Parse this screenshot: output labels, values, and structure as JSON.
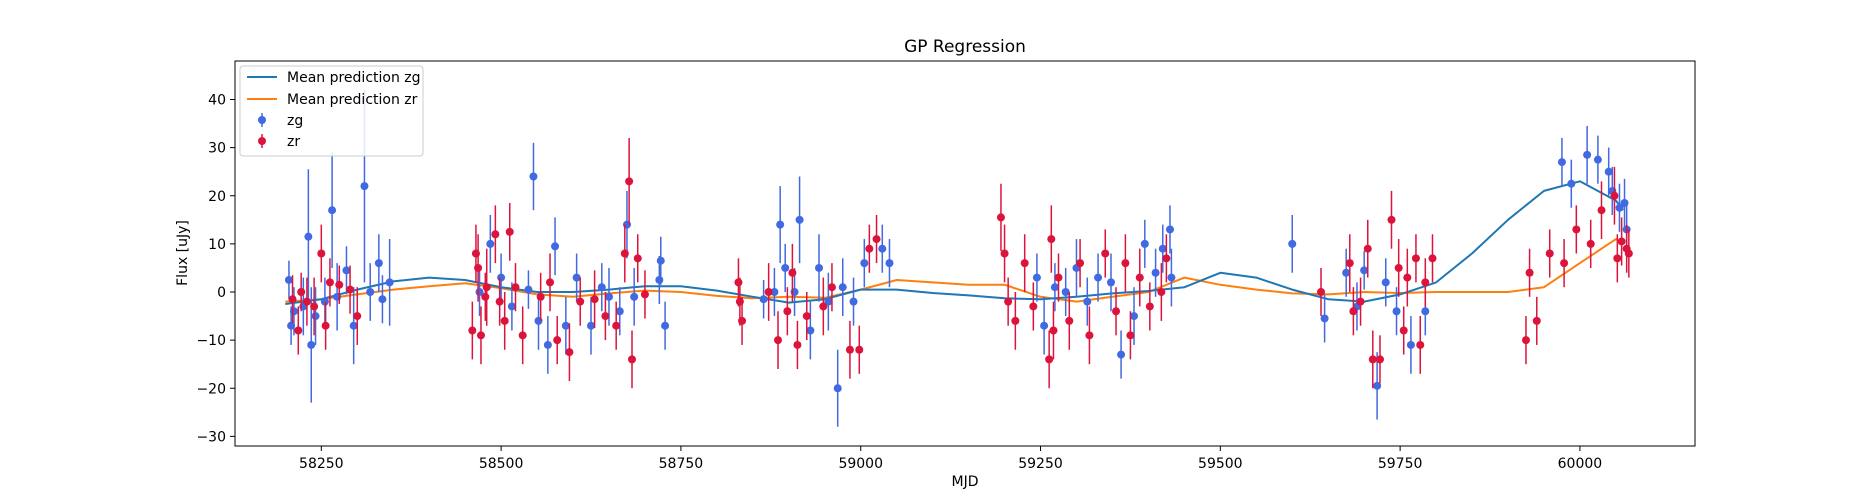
{
  "chart_data": {
    "type": "scatter",
    "title": "GP Regression",
    "xlabel": "MJD",
    "ylabel": "Flux [uJy]",
    "xlim": [
      58130,
      60160
    ],
    "ylim": [
      -32,
      48
    ],
    "xticks": [
      58250,
      58500,
      58750,
      59000,
      59250,
      59500,
      59750,
      60000
    ],
    "yticks": [
      -30,
      -20,
      -10,
      0,
      10,
      20,
      30,
      40
    ],
    "grid": false,
    "legend_position": "top-left",
    "series": [
      {
        "name": "Mean prediction zg",
        "kind": "line",
        "color": "#1f77b4",
        "x": [
          58200,
          58250,
          58300,
          58350,
          58400,
          58450,
          58500,
          58550,
          58600,
          58650,
          58700,
          58750,
          58800,
          58850,
          58900,
          58950,
          59000,
          59050,
          59100,
          59150,
          59200,
          59250,
          59300,
          59350,
          59400,
          59450,
          59500,
          59550,
          59600,
          59650,
          59700,
          59750,
          59800,
          59850,
          59900,
          59950,
          60000,
          60050,
          60060
        ],
        "y": [
          -2.5,
          -1.5,
          0.5,
          2.2,
          3.0,
          2.5,
          1.0,
          0.0,
          0.0,
          0.5,
          1.2,
          1.2,
          0.3,
          -1.0,
          -2.2,
          -1.5,
          0.5,
          0.5,
          -0.2,
          -0.7,
          -1.3,
          -1.5,
          -1.0,
          -0.3,
          0.2,
          1.0,
          4.0,
          3.0,
          0.5,
          -1.5,
          -2.0,
          -0.5,
          2.0,
          8.0,
          15.0,
          21.0,
          23.0,
          19.0,
          17.0
        ]
      },
      {
        "name": "Mean prediction zr",
        "kind": "line",
        "color": "#ff7f0e",
        "x": [
          58200,
          58250,
          58300,
          58350,
          58400,
          58450,
          58500,
          58550,
          58600,
          58650,
          58700,
          58750,
          58800,
          58850,
          58900,
          58950,
          59000,
          59050,
          59100,
          59150,
          59200,
          59250,
          59300,
          59350,
          59400,
          59450,
          59500,
          59550,
          59600,
          59650,
          59700,
          59750,
          59800,
          59850,
          59900,
          59950,
          60000,
          60050,
          60060
        ],
        "y": [
          -2.0,
          -1.5,
          -0.5,
          0.5,
          1.2,
          1.8,
          0.8,
          -0.5,
          -1.0,
          -0.3,
          0.3,
          0.0,
          -0.8,
          -1.3,
          -1.0,
          -1.2,
          0.5,
          2.5,
          2.0,
          1.5,
          1.5,
          -1.0,
          -2.0,
          -1.0,
          0.0,
          3.0,
          1.5,
          0.5,
          -0.3,
          -0.5,
          0.0,
          -0.2,
          0.0,
          0.0,
          0.0,
          1.0,
          6.0,
          11.0,
          10.0
        ]
      },
      {
        "name": "zg",
        "kind": "errorbar",
        "color": "#4169e1",
        "points": [
          [
            58205,
            2.5,
            4
          ],
          [
            58208,
            -7,
            4
          ],
          [
            58212,
            -4,
            5
          ],
          [
            58225,
            -3,
            6
          ],
          [
            58232,
            11.5,
            14
          ],
          [
            58236,
            -11,
            12
          ],
          [
            58242,
            -5,
            6
          ],
          [
            58255,
            -2,
            5
          ],
          [
            58265,
            17,
            12
          ],
          [
            58272,
            -1,
            7
          ],
          [
            58285,
            4.5,
            5
          ],
          [
            58295,
            -7,
            8
          ],
          [
            58310,
            22,
            20
          ],
          [
            58318,
            0,
            6
          ],
          [
            58330,
            6,
            6
          ],
          [
            58335,
            -1.5,
            5
          ],
          [
            58345,
            2,
            9
          ],
          [
            58470,
            0,
            5
          ],
          [
            58485,
            10,
            6
          ],
          [
            58500,
            3,
            5
          ],
          [
            58515,
            -3,
            5
          ],
          [
            58538,
            0.5,
            4
          ],
          [
            58545,
            24,
            7
          ],
          [
            58552,
            -6,
            6
          ],
          [
            58565,
            -11,
            6
          ],
          [
            58575,
            9.5,
            6
          ],
          [
            58590,
            -7,
            6
          ],
          [
            58605,
            3,
            5
          ],
          [
            58625,
            -7,
            6
          ],
          [
            58640,
            1,
            5
          ],
          [
            58650,
            -1,
            6
          ],
          [
            58665,
            -4,
            5
          ],
          [
            58675,
            14,
            7
          ],
          [
            58685,
            -1,
            6
          ],
          [
            58720,
            2.5,
            5
          ],
          [
            58722,
            6.5,
            5
          ],
          [
            58728,
            -7,
            5
          ],
          [
            58865,
            -1.5,
            4
          ],
          [
            58880,
            0,
            5
          ],
          [
            58888,
            14,
            8
          ],
          [
            58895,
            5,
            5
          ],
          [
            58908,
            0,
            5
          ],
          [
            58915,
            15,
            9
          ],
          [
            58930,
            -8,
            6
          ],
          [
            58942,
            5,
            7
          ],
          [
            58955,
            -2,
            6
          ],
          [
            58968,
            -20,
            8
          ],
          [
            58975,
            1,
            6
          ],
          [
            58990,
            -2,
            5
          ],
          [
            59005,
            6,
            5
          ],
          [
            59030,
            9,
            5
          ],
          [
            59040,
            6,
            5
          ],
          [
            59245,
            3,
            5
          ],
          [
            59255,
            -7,
            6
          ],
          [
            59270,
            1,
            5
          ],
          [
            59285,
            0,
            5
          ],
          [
            59300,
            5,
            6
          ],
          [
            59315,
            -2,
            5
          ],
          [
            59330,
            3,
            5
          ],
          [
            59348,
            2,
            6
          ],
          [
            59362,
            -13,
            5
          ],
          [
            59380,
            -5,
            6
          ],
          [
            59395,
            10,
            5
          ],
          [
            59410,
            4,
            5
          ],
          [
            59420,
            9,
            5
          ],
          [
            59430,
            13,
            5
          ],
          [
            59432,
            3,
            6
          ],
          [
            59600,
            10,
            6
          ],
          [
            59645,
            -5.5,
            5
          ],
          [
            59675,
            4,
            5
          ],
          [
            59690,
            -3,
            5
          ],
          [
            59700,
            4.5,
            4
          ],
          [
            59718,
            -19.5,
            7
          ],
          [
            59730,
            2,
            5
          ],
          [
            59745,
            -4,
            5
          ],
          [
            59765,
            -11,
            6
          ],
          [
            59785,
            -4,
            5
          ],
          [
            59975,
            27,
            5
          ],
          [
            59988,
            22.5,
            5
          ],
          [
            60010,
            28.5,
            6
          ],
          [
            60025,
            27.5,
            5
          ],
          [
            60040,
            25,
            5
          ],
          [
            60045,
            21,
            5
          ],
          [
            60055,
            17.5,
            5
          ],
          [
            60062,
            18.5,
            5
          ],
          [
            60065,
            13,
            5
          ]
        ]
      },
      {
        "name": "zr",
        "kind": "errorbar",
        "color": "#dc143c",
        "points": [
          [
            58210,
            -1.5,
            5
          ],
          [
            58218,
            -8,
            5
          ],
          [
            58222,
            0,
            4
          ],
          [
            58230,
            -2,
            5
          ],
          [
            58240,
            -3,
            6
          ],
          [
            58250,
            8,
            6
          ],
          [
            58256,
            -7,
            5
          ],
          [
            58262,
            2,
            5
          ],
          [
            58275,
            1.5,
            4
          ],
          [
            58290,
            0.5,
            5
          ],
          [
            58300,
            -5,
            6
          ],
          [
            58460,
            -8,
            6
          ],
          [
            58465,
            8,
            6
          ],
          [
            58468,
            5,
            7
          ],
          [
            58472,
            -9,
            6
          ],
          [
            58478,
            -1,
            5
          ],
          [
            58480,
            1,
            8
          ],
          [
            58492,
            12,
            6
          ],
          [
            58498,
            -2,
            5
          ],
          [
            58505,
            -6,
            6
          ],
          [
            58512,
            12.5,
            6
          ],
          [
            58520,
            1,
            5
          ],
          [
            58530,
            -9,
            6
          ],
          [
            58555,
            -1,
            5
          ],
          [
            58568,
            2,
            6
          ],
          [
            58578,
            -10,
            5
          ],
          [
            58595,
            -12.5,
            6
          ],
          [
            58610,
            -2,
            5
          ],
          [
            58630,
            -1.5,
            6
          ],
          [
            58645,
            -5,
            5
          ],
          [
            58660,
            -7,
            5
          ],
          [
            58672,
            8,
            6
          ],
          [
            58678,
            23,
            9
          ],
          [
            58682,
            -14,
            6
          ],
          [
            58690,
            7,
            5
          ],
          [
            58700,
            -0.5,
            5
          ],
          [
            58830,
            2,
            5
          ],
          [
            58832,
            -2,
            5
          ],
          [
            58835,
            -6,
            5
          ],
          [
            58872,
            0,
            6
          ],
          [
            58885,
            -10,
            6
          ],
          [
            58898,
            -4,
            5
          ],
          [
            58905,
            4,
            6
          ],
          [
            58912,
            -11,
            5
          ],
          [
            58925,
            -5,
            5
          ],
          [
            58948,
            -3,
            6
          ],
          [
            58960,
            1,
            5
          ],
          [
            58985,
            -12,
            6
          ],
          [
            58998,
            -12,
            5
          ],
          [
            59012,
            9,
            5
          ],
          [
            59022,
            11,
            5
          ],
          [
            59195,
            15.5,
            7
          ],
          [
            59200,
            8,
            6
          ],
          [
            59205,
            -2,
            5
          ],
          [
            59215,
            -6,
            6
          ],
          [
            59228,
            6,
            6
          ],
          [
            59240,
            -3,
            5
          ],
          [
            59262,
            -14,
            6
          ],
          [
            59265,
            11,
            7
          ],
          [
            59268,
            -8,
            6
          ],
          [
            59275,
            3,
            5
          ],
          [
            59290,
            -6,
            6
          ],
          [
            59305,
            6,
            5
          ],
          [
            59318,
            -9,
            6
          ],
          [
            59340,
            8,
            5
          ],
          [
            59355,
            -4,
            5
          ],
          [
            59368,
            6,
            6
          ],
          [
            59375,
            -9,
            5
          ],
          [
            59388,
            3,
            6
          ],
          [
            59402,
            -3,
            5
          ],
          [
            59418,
            0,
            6
          ],
          [
            59425,
            7,
            5
          ],
          [
            59640,
            0,
            5
          ],
          [
            59680,
            6,
            6
          ],
          [
            59685,
            -4,
            5
          ],
          [
            59695,
            -2,
            5
          ],
          [
            59705,
            9,
            6
          ],
          [
            59712,
            -14,
            6
          ],
          [
            59722,
            -14,
            5
          ],
          [
            59738,
            15,
            6
          ],
          [
            59748,
            5,
            6
          ],
          [
            59755,
            -8,
            5
          ],
          [
            59760,
            3,
            6
          ],
          [
            59772,
            7,
            5
          ],
          [
            59778,
            -11,
            6
          ],
          [
            59785,
            2,
            5
          ],
          [
            59795,
            7,
            5
          ],
          [
            59925,
            -10,
            5
          ],
          [
            59930,
            4,
            5
          ],
          [
            59940,
            -6,
            5
          ],
          [
            59958,
            8,
            5
          ],
          [
            59978,
            6,
            5
          ],
          [
            59995,
            13,
            5
          ],
          [
            60015,
            10,
            5
          ],
          [
            60030,
            17,
            6
          ],
          [
            60048,
            20,
            6
          ],
          [
            60052,
            7,
            5
          ],
          [
            60058,
            10.5,
            5
          ],
          [
            60065,
            9,
            5
          ],
          [
            60068,
            8,
            5
          ]
        ]
      }
    ]
  }
}
